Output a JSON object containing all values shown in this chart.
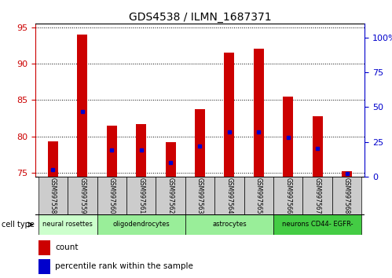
{
  "title": "GDS4538 / ILMN_1687371",
  "samples": [
    "GSM997558",
    "GSM997559",
    "GSM997560",
    "GSM997561",
    "GSM997562",
    "GSM997563",
    "GSM997564",
    "GSM997565",
    "GSM997566",
    "GSM997567",
    "GSM997568"
  ],
  "count_values": [
    79.3,
    94.0,
    81.5,
    81.7,
    79.2,
    83.8,
    91.5,
    92.1,
    85.5,
    82.8,
    75.2
  ],
  "percentile_values": [
    5,
    47,
    19,
    19,
    10,
    22,
    32,
    32,
    28,
    20,
    2
  ],
  "ylim_left": [
    74.5,
    95.5
  ],
  "ylim_right": [
    0,
    110
  ],
  "yticks_left": [
    75,
    80,
    85,
    90,
    95
  ],
  "yticks_right": [
    0,
    25,
    50,
    75,
    100
  ],
  "ytick_labels_right": [
    "0",
    "25",
    "50",
    "75",
    "100%"
  ],
  "bar_color": "#cc0000",
  "dot_color": "#0000cc",
  "bar_width": 0.35,
  "cell_groups": [
    {
      "label": "neural rosettes",
      "indices": [
        0,
        1
      ],
      "color": "#ccffcc"
    },
    {
      "label": "oligodendrocytes",
      "indices": [
        2,
        3,
        4
      ],
      "color": "#99ee99"
    },
    {
      "label": "astrocytes",
      "indices": [
        5,
        6,
        7
      ],
      "color": "#99ee99"
    },
    {
      "label": "neurons CD44- EGFR-",
      "indices": [
        8,
        9,
        10
      ],
      "color": "#44cc44"
    }
  ],
  "legend_count_label": "count",
  "legend_pct_label": "percentile rank within the sample",
  "cell_type_label": "cell type",
  "tick_color_left": "#cc0000",
  "tick_color_right": "#0000cc",
  "label_box_color": "#cccccc",
  "title_fontsize": 10,
  "tick_fontsize": 8,
  "sample_fontsize": 5.5,
  "cell_fontsize": 6,
  "legend_fontsize": 7.5
}
